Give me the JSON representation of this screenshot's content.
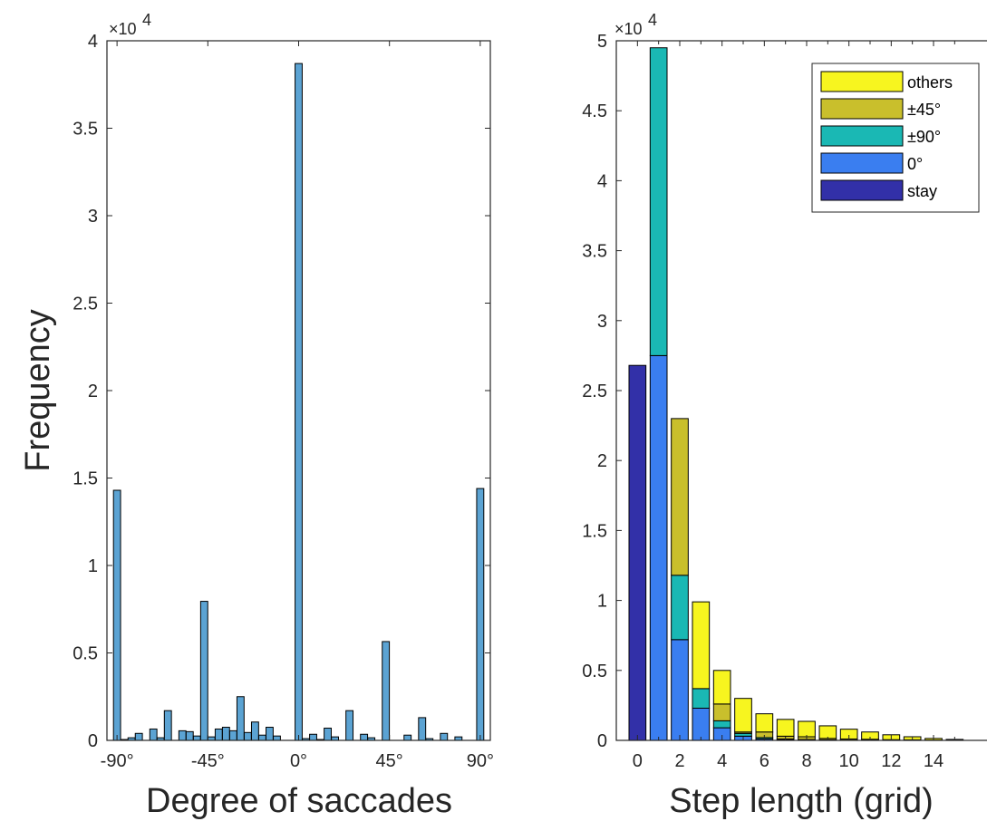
{
  "chart_data": [
    {
      "type": "bar",
      "xlabel": "Degree of saccades",
      "ylabel": "Frequency",
      "exponent_label": "×10",
      "exponent_power": "4",
      "ylim": [
        0,
        40000
      ],
      "xlim": [
        -95,
        95
      ],
      "x_ticks": [
        -90,
        -45,
        0,
        45,
        90
      ],
      "x_tick_labels": [
        "-90°",
        "-45°",
        "0°",
        "45°",
        "90°"
      ],
      "y_ticks": [
        0,
        5000,
        10000,
        15000,
        20000,
        25000,
        30000,
        35000,
        40000
      ],
      "y_tick_labels": [
        "0",
        "0.5",
        "1",
        "1.5",
        "2",
        "2.5",
        "3",
        "3.5",
        "4"
      ],
      "bar_color": "#5ba3d3",
      "x": [
        -90,
        -86.4,
        -82.8,
        -79.2,
        -75.6,
        -72,
        -68.4,
        -64.8,
        -61.2,
        -57.6,
        -54,
        -50.4,
        -46.8,
        -43.2,
        -39.6,
        -36,
        -32.4,
        -28.8,
        -25.2,
        -21.6,
        -18,
        -14.4,
        -10.8,
        -7.2,
        -3.6,
        0,
        3.6,
        7.2,
        10.8,
        14.4,
        18,
        21.6,
        25.2,
        28.8,
        32.4,
        36,
        39.6,
        43.2,
        46.8,
        50.4,
        54,
        57.6,
        61.2,
        64.8,
        68.4,
        72,
        75.6,
        79.2,
        82.8,
        86.4,
        90
      ],
      "values": [
        14300,
        50,
        150,
        400,
        0,
        650,
        150,
        1700,
        0,
        550,
        500,
        250,
        7950,
        200,
        650,
        750,
        550,
        2500,
        450,
        1050,
        300,
        750,
        250,
        0,
        0,
        38700,
        100,
        350,
        50,
        700,
        200,
        0,
        1700,
        0,
        350,
        150,
        0,
        5650,
        0,
        0,
        300,
        0,
        1300,
        100,
        0,
        400,
        0,
        200,
        0,
        0,
        14400
      ]
    },
    {
      "type": "bar",
      "stacked": true,
      "xlabel": "Step length (grid)",
      "exponent_label": "×10",
      "exponent_power": "4",
      "ylim": [
        0,
        50000
      ],
      "xlim": [
        -1,
        17
      ],
      "x_ticks": [
        0,
        2,
        4,
        6,
        8,
        10,
        12,
        14
      ],
      "x_tick_labels": [
        "0",
        "2",
        "4",
        "6",
        "8",
        "10",
        "12",
        "14"
      ],
      "y_ticks": [
        0,
        5000,
        10000,
        15000,
        20000,
        25000,
        30000,
        35000,
        40000,
        45000,
        50000
      ],
      "y_tick_labels": [
        "0",
        "0.5",
        "1",
        "1.5",
        "2",
        "2.5",
        "3",
        "3.5",
        "4",
        "4.5",
        "5"
      ],
      "legend_position": "top-right",
      "categories": [
        0,
        1,
        2,
        3,
        4,
        5,
        6,
        7,
        8,
        9,
        10,
        11,
        12,
        13,
        14,
        15
      ],
      "series": [
        {
          "name": "stay",
          "color": "#3230a8",
          "values": [
            26800,
            0,
            0,
            0,
            0,
            0,
            0,
            0,
            0,
            0,
            0,
            0,
            0,
            0,
            0,
            0
          ]
        },
        {
          "name": "0°",
          "color": "#3a7ef0",
          "values": [
            0,
            27500,
            7200,
            2300,
            900,
            300,
            100,
            50,
            30,
            20,
            10,
            10,
            5,
            5,
            0,
            0
          ]
        },
        {
          "name": "±90°",
          "color": "#1ab8b4",
          "values": [
            0,
            22000,
            4600,
            1400,
            500,
            200,
            100,
            50,
            30,
            20,
            10,
            10,
            5,
            5,
            0,
            0
          ]
        },
        {
          "name": "±45°",
          "color": "#c9bf2c",
          "values": [
            0,
            0,
            11200,
            0,
            1200,
            100,
            400,
            200,
            200,
            100,
            80,
            60,
            40,
            30,
            20,
            10
          ]
        },
        {
          "name": "others",
          "color": "#f7f51f",
          "values": [
            0,
            0,
            0,
            6200,
            2400,
            2400,
            1300,
            1200,
            1100,
            900,
            700,
            520,
            350,
            220,
            120,
            60
          ]
        }
      ]
    }
  ]
}
